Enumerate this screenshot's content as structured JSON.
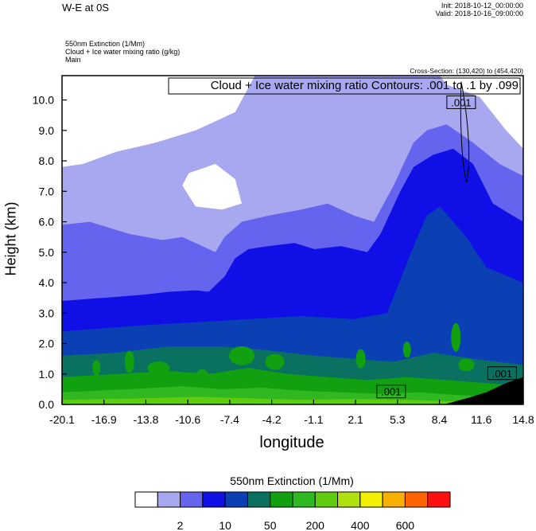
{
  "header": {
    "title": "W-E at 0S",
    "init": "Init: 2018-10-12_00:00:00",
    "valid": "Valid: 2018-10-16_09:00:00",
    "fields": [
      "550nm Extinction   (1/Mm)",
      "Cloud + Ice water mixing ratio   (g/kg)",
      "Main"
    ],
    "cross_section": "Cross-Section: (130,420) to (454,420)"
  },
  "colors": {
    "scale": [
      "#ffffff",
      "#a8a8f0",
      "#6464ee",
      "#1010e6",
      "#0a40b4",
      "#0a7060",
      "#10a010",
      "#30b820",
      "#60cc10",
      "#b0e010",
      "#f0f000",
      "#f8b000",
      "#ff6400",
      "#ff1010"
    ],
    "terrain": "#000000"
  },
  "chart_data": {
    "type": "heatmap",
    "title": "Cloud + Ice water mixing ratio Contours: .001 to .1 by .099",
    "xlabel": "longitude",
    "ylabel": "Height (km)",
    "x_ticks": [
      "-20.1",
      "-16.9",
      "-13.8",
      "-10.6",
      "-7.4",
      "-4.2",
      "-1.1",
      "2.1",
      "5.3",
      "8.4",
      "11.6",
      "14.8"
    ],
    "y_ticks": [
      "0.0",
      "1.0",
      "2.0",
      "3.0",
      "4.0",
      "5.0",
      "6.0",
      "7.0",
      "8.0",
      "9.0",
      "10.0"
    ],
    "xlim": [
      -20.1,
      14.8
    ],
    "ylim": [
      0,
      10.8
    ],
    "colorbar": {
      "title": "550nm Extinction  (1/Mm)",
      "labels": [
        "2",
        "10",
        "50",
        "200",
        "400",
        "600"
      ]
    },
    "contour_labels": [
      {
        "text": ".001",
        "x": 10.1,
        "y": 9.9
      },
      {
        "text": ".001",
        "x": 4.8,
        "y": 0.4
      },
      {
        "text": ".001",
        "x": 13.2,
        "y": 1.0
      }
    ]
  }
}
